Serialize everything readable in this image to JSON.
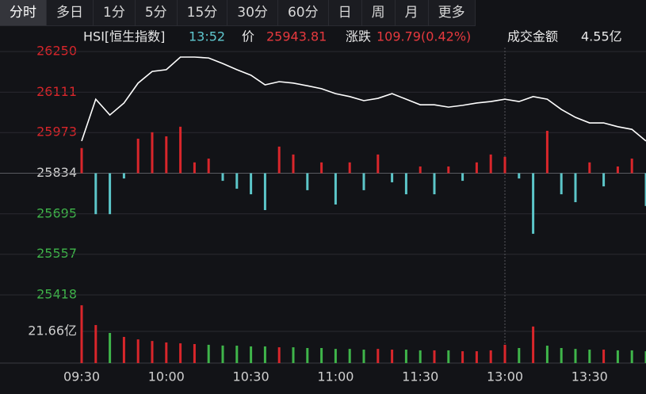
{
  "tabs": [
    "分时",
    "多日",
    "1分",
    "5分",
    "15分",
    "30分",
    "60分",
    "日",
    "周",
    "月",
    "更多"
  ],
  "info": {
    "symbol": "HSI[恒生指数]",
    "time": "13:52",
    "price_label": "价",
    "price": "25943.81",
    "change_label": "涨跌",
    "change": "109.79(0.42%)",
    "turnover_label": "成交金额",
    "turnover": "4.55亿"
  },
  "chart_data": {
    "type": "line",
    "categories": [
      "09:30",
      "09:35",
      "09:40",
      "09:45",
      "09:50",
      "09:55",
      "10:00",
      "10:05",
      "10:10",
      "10:15",
      "10:20",
      "10:25",
      "10:30",
      "10:35",
      "10:40",
      "10:45",
      "10:50",
      "10:55",
      "11:00",
      "11:05",
      "11:10",
      "11:15",
      "11:20",
      "11:25",
      "11:30",
      "11:35",
      "11:40",
      "11:45",
      "11:50",
      "11:55",
      "13:00",
      "13:05",
      "13:10",
      "13:15",
      "13:20",
      "13:25",
      "13:30",
      "13:35",
      "13:40",
      "13:45",
      "13:50"
    ],
    "xticks": [
      "09:30",
      "10:00",
      "10:30",
      "11:00",
      "11:30",
      "13:00",
      "13:30"
    ],
    "series": [
      {
        "name": "HSI",
        "color": "#ffffff",
        "values": [
          25944,
          26087,
          26033,
          26074,
          26142,
          26182,
          26188,
          26231,
          26231,
          26228,
          26209,
          26188,
          26169,
          26136,
          26147,
          26142,
          26133,
          26123,
          26106,
          26096,
          26082,
          26090,
          26106,
          26087,
          26068,
          26068,
          26060,
          26066,
          26074,
          26079,
          26087,
          26079,
          26096,
          26087,
          26052,
          26025,
          26006,
          26006,
          25993,
          25984,
          25944
        ]
      }
    ],
    "bars": {
      "values": [
        25920,
        25694,
        25694,
        25816,
        25952,
        25974,
        25960,
        25993,
        25871,
        25884,
        25808,
        25781,
        25762,
        25708,
        25925,
        25898,
        25776,
        25871,
        25727,
        25871,
        25776,
        25898,
        25803,
        25762,
        25857,
        25762,
        25857,
        25808,
        25871,
        25898,
        25890,
        25816,
        25627,
        25979,
        25762,
        25735,
        25871,
        25789,
        25857,
        25884,
        25722
      ],
      "up_color": "#d9262b",
      "down_color": "#5cc6c9"
    },
    "ylim": [
      25418,
      26250
    ],
    "yticks": [
      26250,
      26111,
      25973,
      25834,
      25695,
      25557,
      25418
    ],
    "volume": {
      "values": [
        39.5,
        26,
        20.6,
        17.9,
        16.2,
        15.1,
        14.1,
        13.5,
        13,
        12.5,
        12,
        11.9,
        11.4,
        11.4,
        10.8,
        10.8,
        10.3,
        10.3,
        9.7,
        9.7,
        9.2,
        9.7,
        9.2,
        9.2,
        8.7,
        8.7,
        8.7,
        8.1,
        8.1,
        8.7,
        12.5,
        10.3,
        25,
        11.9,
        10.3,
        9.7,
        9.2,
        9.2,
        8.7,
        8.7,
        8.1
      ],
      "ylim": [
        0,
        46.6
      ],
      "yticks": [
        {
          "value": 21.66,
          "label": "21.66亿"
        }
      ]
    },
    "grid": true
  }
}
